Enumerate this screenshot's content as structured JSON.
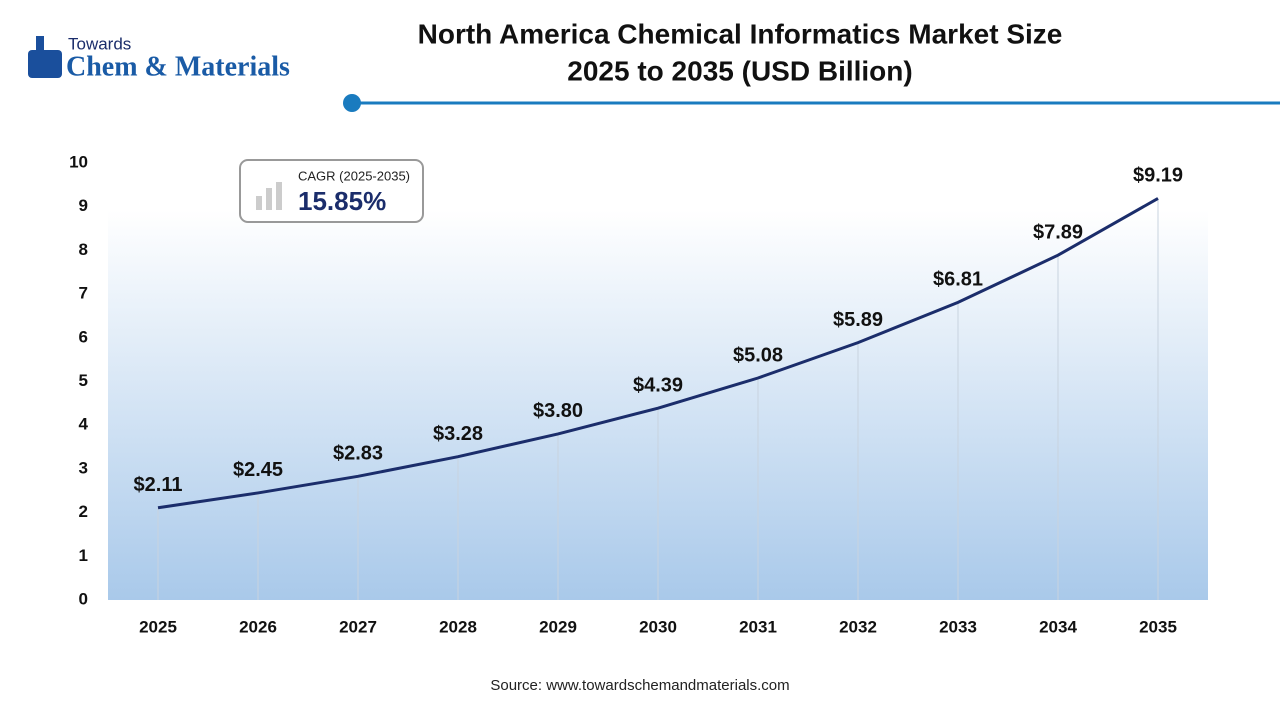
{
  "logo": {
    "top": "Towards",
    "bottom": "Chem & Materials"
  },
  "chart_data": {
    "type": "line",
    "title": "North America Chemical Informatics Market Size",
    "subtitle": "2025 to 2035 (USD Billion)",
    "categories": [
      "2025",
      "2026",
      "2027",
      "2028",
      "2029",
      "2030",
      "2031",
      "2032",
      "2033",
      "2034",
      "2035"
    ],
    "values": [
      2.11,
      2.45,
      2.83,
      3.28,
      3.8,
      4.39,
      5.08,
      5.89,
      6.81,
      7.89,
      9.19
    ],
    "value_labels": [
      "$2.11",
      "$2.45",
      "$2.83",
      "$3.28",
      "$3.80",
      "$4.39",
      "$5.08",
      "$5.89",
      "$6.81",
      "$7.89",
      "$9.19"
    ],
    "color": "#1b2d6b",
    "ylim": [
      0,
      10
    ],
    "yticks": [
      0,
      1,
      2,
      3,
      4,
      5,
      6,
      7,
      8,
      9,
      10
    ],
    "annotation": {
      "label": "CAGR (2025-2035)",
      "value": "15.85%"
    },
    "source": "Source: www.towardschemandmaterials.com"
  }
}
